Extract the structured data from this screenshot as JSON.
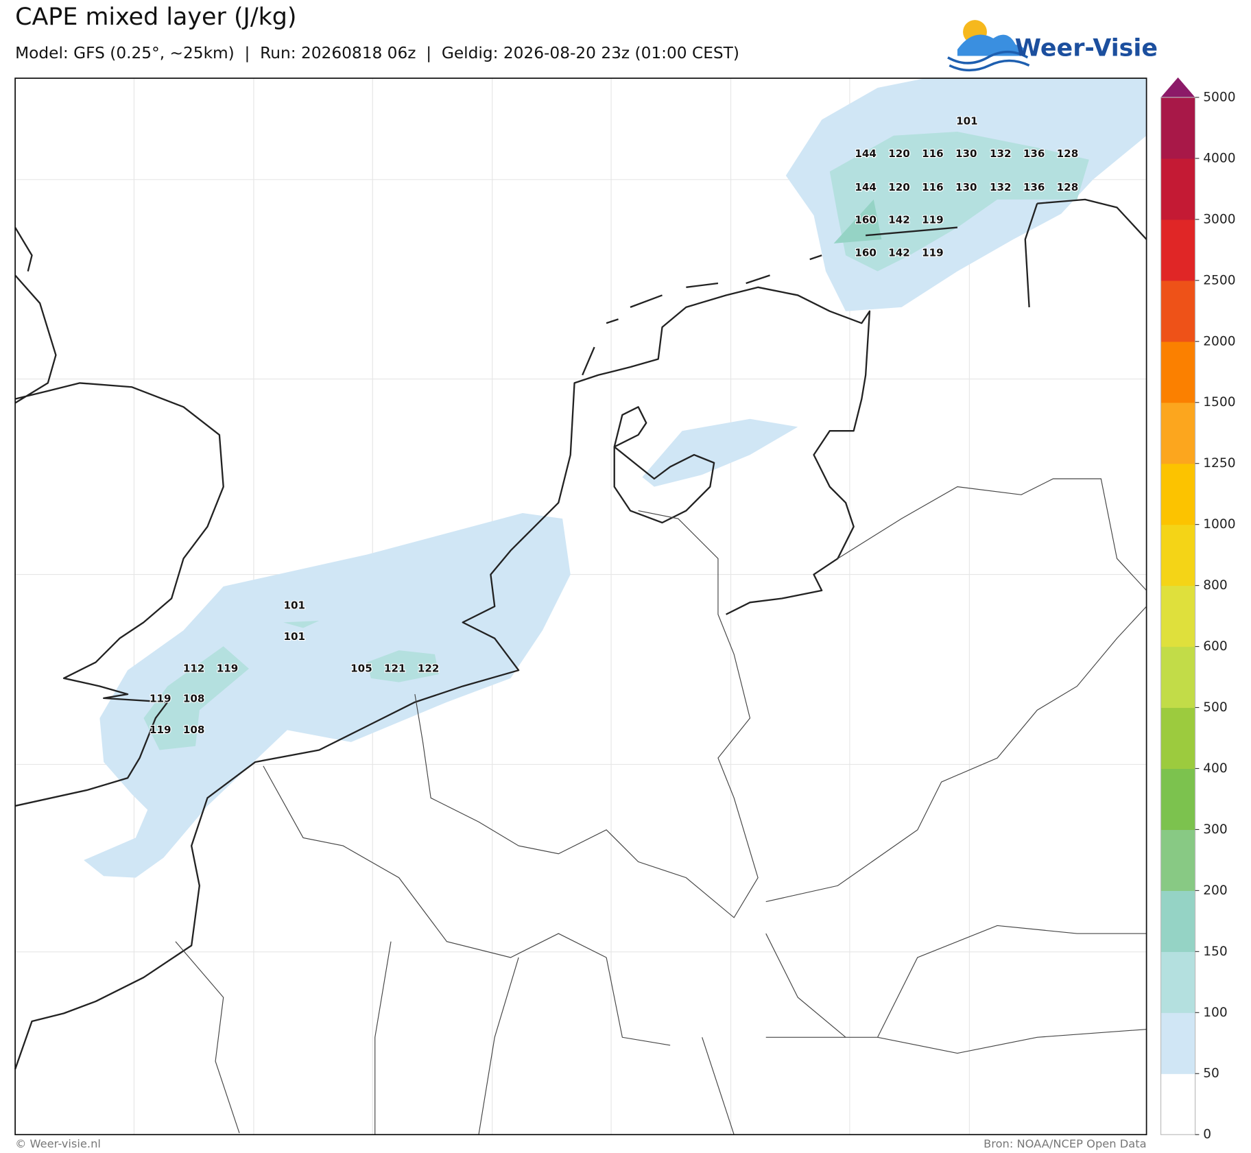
{
  "title": "CAPE mixed layer (J/kg)",
  "subtitle": "Model: GFS (0.25°, ~25km)  |  Run: 20260818 06z  |  Geldig: 2026-08-20 23z (01:00 CEST)",
  "logo": "Weer-Visie",
  "footer_left": "© Weer-visie.nl",
  "footer_right": "Bron: NOAA/NCEP Open Data",
  "map_labels": [
    101,
    144,
    120,
    116,
    130,
    132,
    136,
    128,
    144,
    120,
    116,
    130,
    132,
    136,
    128,
    160,
    142,
    119,
    160,
    142,
    119,
    101,
    101,
    112,
    119,
    105,
    121,
    122,
    119,
    108,
    119,
    108
  ],
  "colorbar": {
    "ticks": [
      0,
      50,
      100,
      150,
      200,
      300,
      400,
      500,
      600,
      800,
      1000,
      1250,
      1500,
      2000,
      2500,
      3000,
      4000,
      5000
    ],
    "colors": [
      "#ffffff",
      "#d0e6f5",
      "#b4e0df",
      "#95d3c5",
      "#88c984",
      "#7cc24e",
      "#9ccb3e",
      "#c2dc48",
      "#dfe03c",
      "#f4d417",
      "#fcc300",
      "#fca61e",
      "#fb8000",
      "#ee5218",
      "#e02626",
      "#c41a34",
      "#a81848"
    ],
    "extend_color": "#8c1a68"
  }
}
